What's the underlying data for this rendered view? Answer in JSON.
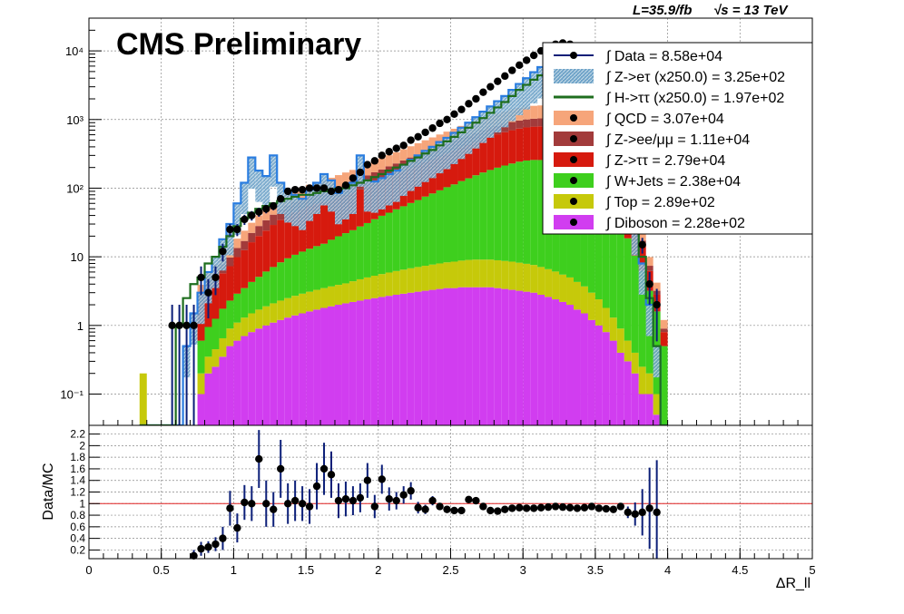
{
  "header": {
    "title": "CMS Preliminary",
    "lumi_label": "L=35.9/fb",
    "energy_label": "√s = 13 TeV"
  },
  "legend": {
    "entries": [
      {
        "label": "∫ Data = 8.58e+04",
        "color": "#0b1e78",
        "style": "marker"
      },
      {
        "label": "∫ Z->eτ (x250.0) = 3.25e+02",
        "color": "#7fb4d6",
        "style": "hatch"
      },
      {
        "label": "∫ H->ττ (x250.0) = 1.97e+02",
        "color": "#1e6e1e",
        "style": "line"
      },
      {
        "label": "∫ QCD = 3.07e+04",
        "color": "#f6a57a",
        "style": "fill"
      },
      {
        "label": "∫ Z->ee/μμ = 1.11e+04",
        "color": "#a23b3b",
        "style": "fill"
      },
      {
        "label": "∫ Z->ττ = 2.79e+04",
        "color": "#d61a0e",
        "style": "fill"
      },
      {
        "label": "∫ W+Jets = 2.38e+04",
        "color": "#3ecf1e",
        "style": "fill"
      },
      {
        "label": "∫ Top = 2.89e+02",
        "color": "#c6c90a",
        "style": "fill"
      },
      {
        "label": "∫ Diboson = 2.28e+02",
        "color": "#d13df0",
        "style": "fill"
      }
    ]
  },
  "chart_data": [
    {
      "type": "bar",
      "panel": "main",
      "y_scale": "log",
      "ylim": [
        0.035,
        30000
      ],
      "xlim": [
        0,
        5
      ],
      "bin_width": 0.05,
      "grid": true,
      "legend_position": "top-right",
      "yticks": [
        {
          "v": 0.1,
          "label": "10⁻¹"
        },
        {
          "v": 1,
          "label": "1"
        },
        {
          "v": 10,
          "label": "10"
        },
        {
          "v": 100,
          "label": "10²"
        },
        {
          "v": 1000,
          "label": "10³"
        },
        {
          "v": 10000,
          "label": "10⁴"
        }
      ],
      "stack_order": [
        "Diboson",
        "Top",
        "W+Jets",
        "Z->ττ",
        "Z->ee/μμ",
        "QCD"
      ],
      "colors": {
        "Diboson": "#d13df0",
        "Top": "#c6c90a",
        "W+Jets": "#3ecf1e",
        "Z->ττ": "#d61a0e",
        "Z->ee/μμ": "#a23b3b",
        "QCD": "#f6a57a",
        "H->ττ": "#1e6e1e",
        "Z->eτ": "#2a7de0",
        "Data": "#0b1e78"
      },
      "x": [
        0.375,
        0.575,
        0.625,
        0.675,
        0.725,
        0.775,
        0.825,
        0.875,
        0.925,
        0.975,
        1.025,
        1.075,
        1.125,
        1.175,
        1.225,
        1.275,
        1.325,
        1.375,
        1.425,
        1.475,
        1.525,
        1.575,
        1.625,
        1.675,
        1.725,
        1.775,
        1.825,
        1.875,
        1.925,
        1.975,
        2.025,
        2.075,
        2.125,
        2.175,
        2.225,
        2.275,
        2.325,
        2.375,
        2.425,
        2.475,
        2.525,
        2.575,
        2.625,
        2.675,
        2.725,
        2.775,
        2.825,
        2.875,
        2.925,
        2.975,
        3.025,
        3.075,
        3.125,
        3.175,
        3.225,
        3.275,
        3.325,
        3.375,
        3.425,
        3.475,
        3.525,
        3.575,
        3.625,
        3.675,
        3.725,
        3.775,
        3.825,
        3.875,
        3.925,
        3.975
      ],
      "series": [
        {
          "name": "Diboson",
          "values": [
            0,
            0,
            0,
            0,
            0,
            0.1,
            0.2,
            0.25,
            0.35,
            0.5,
            0.6,
            0.7,
            0.8,
            0.9,
            1.0,
            1.1,
            1.2,
            1.3,
            1.4,
            1.5,
            1.6,
            1.7,
            1.8,
            1.9,
            2.0,
            2.1,
            2.2,
            2.3,
            2.4,
            2.5,
            2.6,
            2.7,
            2.8,
            2.9,
            3.0,
            3.1,
            3.2,
            3.3,
            3.4,
            3.5,
            3.5,
            3.6,
            3.6,
            3.6,
            3.6,
            3.6,
            3.5,
            3.4,
            3.3,
            3.2,
            3.1,
            3.0,
            2.8,
            2.6,
            2.4,
            2.2,
            2.0,
            1.7,
            1.5,
            1.2,
            1.0,
            0.8,
            0.6,
            0.4,
            0.3,
            0.2,
            0.1,
            0.1,
            0.05,
            0
          ]
        },
        {
          "name": "Top",
          "values": [
            0.2,
            0,
            0,
            0,
            0,
            0.1,
            0.15,
            0.2,
            0.3,
            0.4,
            0.5,
            0.6,
            0.7,
            0.8,
            0.9,
            1.0,
            1.1,
            1.2,
            1.3,
            1.4,
            1.5,
            1.6,
            1.7,
            1.8,
            1.9,
            2.0,
            2.2,
            2.4,
            2.6,
            2.8,
            3.0,
            3.2,
            3.4,
            3.6,
            3.8,
            4.0,
            4.2,
            4.4,
            4.6,
            4.8,
            5.0,
            5.2,
            5.4,
            5.5,
            5.5,
            5.5,
            5.4,
            5.3,
            5.2,
            5.0,
            4.8,
            4.6,
            4.3,
            4.0,
            3.7,
            3.3,
            3.0,
            2.6,
            2.2,
            1.8,
            1.4,
            1.0,
            0.7,
            0.5,
            0.3,
            0.2,
            0.15,
            0.1,
            0.05,
            0
          ]
        },
        {
          "name": "W+Jets",
          "values": [
            0,
            0,
            0,
            0,
            0,
            0.4,
            0.6,
            0.8,
            1.1,
            1.4,
            1.8,
            2.2,
            2.8,
            3.4,
            4.2,
            5.0,
            6.0,
            7.0,
            8.0,
            9.0,
            10,
            11,
            12,
            14,
            16,
            18,
            20,
            23,
            26,
            30,
            34,
            38,
            43,
            48,
            54,
            60,
            68,
            76,
            85,
            95,
            105,
            118,
            130,
            145,
            160,
            175,
            190,
            205,
            220,
            235,
            245,
            250,
            250,
            245,
            235,
            220,
            200,
            180,
            155,
            130,
            100,
            75,
            50,
            30,
            18,
            10,
            6,
            3,
            1.5,
            0.5
          ]
        },
        {
          "name": "Z->ττ",
          "values": [
            0,
            0,
            0,
            0,
            0,
            1.5,
            2.5,
            3,
            4,
            5,
            7,
            9,
            12,
            15,
            18,
            22,
            26,
            30,
            34,
            38,
            42,
            45,
            48,
            50,
            54,
            58,
            62,
            68,
            75,
            82,
            90,
            100,
            110,
            122,
            135,
            150,
            165,
            180,
            198,
            218,
            240,
            265,
            290,
            318,
            348,
            380,
            410,
            440,
            470,
            495,
            515,
            530,
            540,
            540,
            530,
            510,
            480,
            445,
            400,
            345,
            280,
            210,
            140,
            80,
            40,
            18,
            8,
            3,
            1.2,
            0.3
          ]
        },
        {
          "name": "Z->ee/μμ",
          "values": [
            0,
            0,
            0,
            0,
            0,
            0.8,
            1.2,
            1.5,
            2,
            2.5,
            3.5,
            4.5,
            6,
            8,
            10,
            12,
            15,
            17,
            19,
            21,
            23,
            25,
            27,
            30,
            33,
            36,
            40,
            44,
            48,
            53,
            58,
            64,
            70,
            77,
            84,
            92,
            100,
            110,
            120,
            130,
            140,
            150,
            160,
            170,
            180,
            190,
            200,
            210,
            220,
            228,
            235,
            240,
            242,
            240,
            235,
            225,
            210,
            195,
            175,
            150,
            120,
            90,
            60,
            35,
            18,
            8,
            3,
            1.2,
            0.4,
            0.1
          ]
        },
        {
          "name": "QCD",
          "values": [
            0,
            0,
            0,
            0,
            0,
            1.0,
            1.5,
            2,
            3,
            4,
            5,
            7,
            9,
            12,
            15,
            18,
            22,
            25,
            28,
            31,
            34,
            37,
            40,
            44,
            48,
            53,
            58,
            64,
            70,
            77,
            85,
            94,
            104,
            115,
            128,
            142,
            158,
            175,
            194,
            215,
            240,
            265,
            292,
            320,
            350,
            382,
            415,
            448,
            480,
            510,
            535,
            555,
            565,
            565,
            555,
            530,
            495,
            455,
            405,
            345,
            275,
            205,
            135,
            78,
            38,
            16,
            6,
            2.5,
            1,
            0.3
          ]
        },
        {
          "name": "H->ττ",
          "values": [
            0,
            0,
            1,
            2.5,
            4,
            5,
            8,
            10,
            14,
            20,
            28,
            36,
            44,
            50,
            55,
            60,
            65,
            70,
            75,
            80,
            80,
            85,
            90,
            95,
            98,
            100,
            110,
            120,
            130,
            145,
            160,
            180,
            200,
            220,
            250,
            280,
            320,
            360,
            420,
            480,
            560,
            650,
            760,
            900,
            1050,
            1250,
            1500,
            1800,
            2200,
            2700,
            3200,
            3800,
            4400,
            4800,
            5000,
            5000,
            4800,
            4500,
            4000,
            3500,
            2800,
            2000,
            1200,
            500,
            150,
            40,
            10,
            2.5,
            0.5,
            0
          ]
        },
        {
          "name": "Z->eτ",
          "values": [
            0,
            0,
            0,
            0.5,
            1.5,
            3,
            6,
            10,
            18,
            30,
            60,
            120,
            280,
            180,
            150,
            300,
            120,
            90,
            80,
            70,
            95,
            120,
            160,
            130,
            85,
            100,
            120,
            300,
            130,
            125,
            140,
            160,
            180,
            220,
            260,
            300,
            350,
            400,
            470,
            540,
            640,
            760,
            900,
            1080,
            1300,
            1550,
            1850,
            2200,
            2700,
            3300,
            4000,
            4900,
            5800,
            6300,
            6500,
            6300,
            5800,
            5300,
            4500,
            3600,
            2700,
            1700,
            900,
            350,
            100,
            30,
            8,
            2,
            0.5,
            0
          ]
        },
        {
          "name": "Data",
          "values": [
            0,
            1,
            1,
            1,
            1,
            5,
            3,
            5,
            12,
            25,
            25,
            35,
            40,
            45,
            50,
            55,
            70,
            90,
            95,
            95,
            100,
            100,
            100,
            90,
            95,
            110,
            140,
            170,
            220,
            250,
            300,
            340,
            380,
            420,
            500,
            560,
            650,
            750,
            880,
            1000,
            1200,
            1400,
            1700,
            2000,
            2500,
            3000,
            3600,
            4300,
            5200,
            6200,
            7300,
            8600,
            10000,
            11500,
            12500,
            13000,
            12500,
            11500,
            10000,
            8000,
            6000,
            3800,
            2000,
            800,
            250,
            60,
            15,
            4,
            2,
            0
          ]
        }
      ]
    },
    {
      "type": "scatter",
      "panel": "ratio",
      "ylabel": "Data/MC",
      "xlabel": "ΔR_ll",
      "ylim": [
        0.05,
        2.35
      ],
      "xlim": [
        0,
        5
      ],
      "reference_line": 1.0,
      "yticks": [
        0.2,
        0.4,
        0.6,
        0.8,
        1,
        1.2,
        1.4,
        1.6,
        1.8,
        2,
        2.2
      ],
      "xticks": [
        0,
        0.5,
        1,
        1.5,
        2,
        2.5,
        3,
        3.5,
        4,
        4.5,
        5
      ],
      "x": [
        0.725,
        0.775,
        0.825,
        0.875,
        0.925,
        0.975,
        1.025,
        1.075,
        1.125,
        1.175,
        1.225,
        1.275,
        1.325,
        1.375,
        1.425,
        1.475,
        1.525,
        1.575,
        1.625,
        1.675,
        1.725,
        1.775,
        1.825,
        1.875,
        1.925,
        1.975,
        2.025,
        2.075,
        2.125,
        2.175,
        2.225,
        2.275,
        2.325,
        2.375,
        2.425,
        2.475,
        2.525,
        2.575,
        2.625,
        2.675,
        2.725,
        2.775,
        2.825,
        2.875,
        2.925,
        2.975,
        3.025,
        3.075,
        3.125,
        3.175,
        3.225,
        3.275,
        3.325,
        3.375,
        3.425,
        3.475,
        3.525,
        3.575,
        3.625,
        3.675,
        3.725,
        3.775,
        3.825,
        3.875,
        3.925
      ],
      "y": [
        0.1,
        0.22,
        0.25,
        0.3,
        0.4,
        0.92,
        0.58,
        1.02,
        1.0,
        1.77,
        1.0,
        0.9,
        1.6,
        1.0,
        1.05,
        1.0,
        0.95,
        1.3,
        1.6,
        1.5,
        1.05,
        1.08,
        1.05,
        1.1,
        1.4,
        0.95,
        1.42,
        1.08,
        1.05,
        1.15,
        1.22,
        0.93,
        0.9,
        1.05,
        0.95,
        0.9,
        0.88,
        0.88,
        1.07,
        1.05,
        0.95,
        0.88,
        0.87,
        0.9,
        0.92,
        0.93,
        0.92,
        0.92,
        0.93,
        0.94,
        0.95,
        0.94,
        0.93,
        0.92,
        0.93,
        0.95,
        0.92,
        0.91,
        0.9,
        0.95,
        0.85,
        0.82,
        0.85,
        0.92,
        0.85
      ],
      "yerr": [
        0.1,
        0.12,
        0.1,
        0.12,
        0.2,
        0.3,
        0.25,
        0.3,
        0.3,
        0.5,
        0.4,
        0.3,
        0.5,
        0.35,
        0.35,
        0.3,
        0.3,
        0.4,
        0.45,
        0.4,
        0.3,
        0.3,
        0.25,
        0.25,
        0.3,
        0.2,
        0.25,
        0.2,
        0.15,
        0.15,
        0.15,
        0.1,
        0.08,
        0.08,
        0.06,
        0.05,
        0.04,
        0.04,
        0.04,
        0.03,
        0.03,
        0.03,
        0.02,
        0.02,
        0.02,
        0.02,
        0.02,
        0.02,
        0.02,
        0.02,
        0.02,
        0.02,
        0.02,
        0.02,
        0.02,
        0.02,
        0.02,
        0.03,
        0.04,
        0.06,
        0.1,
        0.2,
        0.4,
        0.7,
        0.9
      ]
    }
  ]
}
